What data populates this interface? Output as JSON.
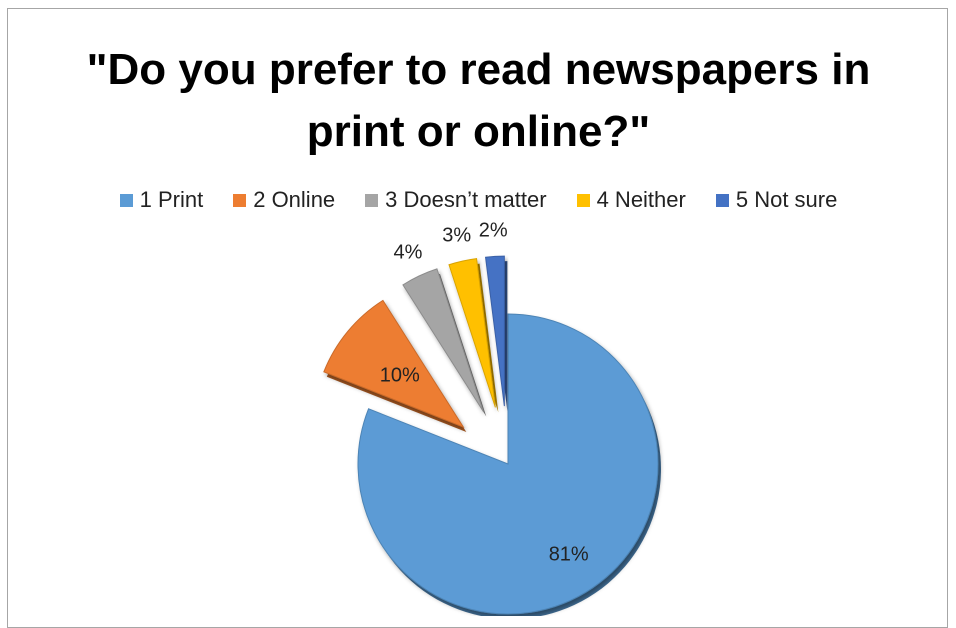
{
  "chart_data": {
    "type": "pie",
    "title": "\"Do you prefer to read newspapers in print or online?\"",
    "title_lines": [
      "\"Do you prefer to read newspapers in",
      "print or online?\""
    ],
    "categories": [
      "1 Print",
      "2 Online",
      "3 Doesn’t matter",
      "4 Neither",
      "5 Not sure"
    ],
    "values": [
      81,
      10,
      4,
      3,
      2
    ],
    "data_labels": [
      "81%",
      "10%",
      "4%",
      "3%",
      "2%"
    ],
    "colors": [
      "#5b9bd5",
      "#ed7d31",
      "#a5a5a5",
      "#ffc000",
      "#4472c4"
    ],
    "legend_position": "top",
    "exploded": true,
    "style": "3d"
  }
}
